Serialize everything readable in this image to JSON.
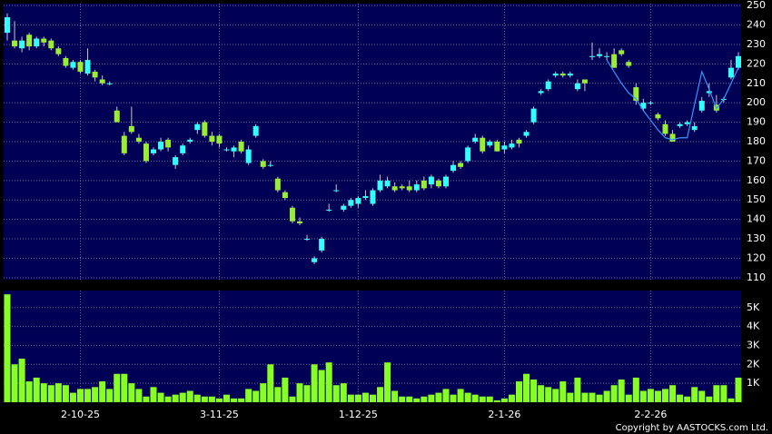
{
  "chart_data": {
    "type": "candlestick",
    "categories": [
      null,
      null,
      null,
      null,
      null,
      null,
      null,
      null,
      null,
      null,
      "2-10-25",
      null,
      null,
      null,
      null,
      null,
      null,
      null,
      null,
      null,
      null,
      null,
      null,
      null,
      null,
      null,
      null,
      null,
      null,
      "3-11-25",
      null,
      null,
      null,
      null,
      null,
      null,
      null,
      null,
      null,
      null,
      null,
      null,
      null,
      null,
      null,
      null,
      null,
      null,
      "1-12-25",
      null,
      null,
      null,
      null,
      null,
      null,
      null,
      null,
      null,
      null,
      null,
      null,
      null,
      null,
      null,
      null,
      null,
      null,
      null,
      "2-1-26",
      null,
      null,
      null,
      null,
      null,
      null,
      null,
      null,
      null,
      null,
      null,
      null,
      null,
      null,
      null,
      null,
      null,
      null,
      null,
      "2-2-26",
      null,
      null,
      null,
      null,
      null,
      null,
      null,
      null,
      null,
      null,
      null,
      null
    ],
    "open": [
      236,
      232,
      228,
      235,
      229,
      233,
      232,
      228,
      223,
      218,
      221,
      215,
      216,
      212,
      210,
      196,
      183,
      188,
      182,
      179,
      174,
      176,
      181,
      168,
      174,
      180,
      186,
      190,
      183,
      183,
      176,
      175,
      180,
      169,
      183,
      170,
      168,
      161,
      154,
      146,
      139,
      130,
      118,
      124,
      145,
      155,
      145,
      147,
      148,
      151,
      148,
      155,
      157,
      157,
      157,
      157,
      155,
      160,
      158,
      160,
      157,
      165,
      169,
      170,
      180,
      182,
      178,
      180,
      176,
      177,
      181,
      183,
      190,
      205,
      207,
      214,
      215,
      214,
      207,
      212,
      224,
      224,
      224,
      225,
      227,
      221,
      208,
      197,
      200,
      194,
      189,
      184,
      188,
      189,
      186,
      196,
      205,
      199,
      202,
      213,
      218
    ],
    "high": [
      246,
      242,
      234,
      236,
      234,
      234,
      233,
      229,
      224,
      222,
      222,
      228,
      217,
      214,
      211,
      198,
      185,
      198,
      184,
      180,
      177,
      182,
      182,
      173,
      179,
      182,
      190,
      191,
      185,
      184,
      177,
      178,
      181,
      178,
      189,
      171,
      170,
      162,
      155,
      147,
      141,
      132,
      121,
      131,
      148,
      158,
      148,
      151,
      152,
      155,
      156,
      163,
      162,
      159,
      158,
      160,
      160,
      162,
      163,
      161,
      163,
      170,
      170,
      178,
      184,
      183,
      181,
      181,
      180,
      181,
      182,
      186,
      198,
      207,
      212,
      216,
      216,
      216,
      212,
      212,
      231,
      228,
      226,
      228,
      228,
      222,
      210,
      202,
      201,
      195,
      191,
      186,
      190,
      191,
      190,
      203,
      210,
      204,
      203,
      222,
      226
    ],
    "low": [
      232,
      228,
      226,
      227,
      228,
      229,
      227,
      224,
      218,
      217,
      215,
      214,
      211,
      209,
      209,
      190,
      173,
      184,
      179,
      169,
      173,
      175,
      175,
      166,
      173,
      179,
      184,
      182,
      178,
      177,
      175,
      172,
      174,
      168,
      182,
      166,
      167,
      154,
      150,
      138,
      137,
      129,
      117,
      123,
      144,
      154,
      144,
      146,
      146,
      150,
      147,
      154,
      156,
      154,
      155,
      154,
      154,
      155,
      156,
      156,
      156,
      164,
      166,
      169,
      179,
      174,
      177,
      175,
      174,
      176,
      177,
      182,
      189,
      204,
      206,
      213,
      213,
      213,
      206,
      206,
      222,
      223,
      222,
      218,
      224,
      218,
      199,
      196,
      199,
      191,
      183,
      180,
      187,
      188,
      185,
      195,
      203,
      195,
      200,
      212,
      217
    ],
    "close": [
      244,
      229,
      232,
      229,
      233,
      231,
      228,
      225,
      219,
      221,
      216,
      222,
      213,
      210,
      210,
      190,
      174,
      185,
      180,
      170,
      176,
      180,
      177,
      172,
      178,
      181,
      189,
      183,
      180,
      179,
      176,
      177,
      175,
      176,
      188,
      167,
      168,
      155,
      151,
      139,
      138,
      130,
      120,
      130,
      145,
      155,
      147,
      150,
      151,
      152,
      155,
      160,
      160,
      155,
      156,
      155,
      158,
      156,
      162,
      157,
      162,
      168,
      167,
      177,
      182,
      175,
      180,
      175,
      178,
      179,
      179,
      185,
      197,
      206,
      211,
      215,
      214,
      215,
      210,
      210,
      224,
      225,
      224,
      218,
      225,
      219,
      201,
      200,
      200,
      192,
      184,
      180,
      189,
      190,
      188,
      201,
      206,
      196,
      202,
      218,
      224
    ],
    "up_color": "#33ffff",
    "down_color": "#99ee33",
    "wick_color": "#c8c8c8",
    "line": {
      "color": "#3399ff",
      "values": [
        null,
        null,
        null,
        null,
        null,
        null,
        null,
        null,
        null,
        null,
        null,
        null,
        null,
        null,
        null,
        null,
        null,
        null,
        null,
        null,
        null,
        null,
        null,
        null,
        null,
        null,
        null,
        null,
        null,
        null,
        null,
        null,
        null,
        null,
        null,
        null,
        null,
        null,
        null,
        null,
        null,
        null,
        null,
        null,
        null,
        null,
        null,
        null,
        null,
        null,
        null,
        null,
        null,
        null,
        null,
        null,
        null,
        null,
        null,
        null,
        null,
        null,
        null,
        null,
        null,
        null,
        null,
        null,
        null,
        null,
        null,
        null,
        null,
        null,
        null,
        null,
        null,
        null,
        null,
        null,
        null,
        null,
        222,
        216,
        210,
        205,
        202,
        196,
        191,
        186,
        182,
        181,
        182,
        182,
        199,
        216,
        207,
        197,
        202,
        210,
        218
      ]
    },
    "ylim": [
      109,
      251
    ],
    "yticks": [
      110,
      120,
      130,
      140,
      150,
      160,
      170,
      180,
      190,
      200,
      210,
      220,
      230,
      240,
      250
    ],
    "volume": {
      "color": "#88ff22",
      "values": [
        5700,
        2000,
        2300,
        1100,
        1300,
        1000,
        900,
        1000,
        900,
        500,
        700,
        700,
        800,
        1100,
        700,
        1500,
        1500,
        1000,
        700,
        300,
        800,
        500,
        300,
        400,
        500,
        600,
        400,
        300,
        300,
        200,
        400,
        200,
        200,
        700,
        600,
        1000,
        2000,
        800,
        1300,
        300,
        1000,
        900,
        2000,
        1700,
        2100,
        900,
        1000,
        400,
        400,
        500,
        400,
        800,
        2100,
        600,
        300,
        300,
        200,
        300,
        400,
        500,
        700,
        400,
        700,
        500,
        400,
        300,
        300,
        100,
        200,
        400,
        1100,
        1500,
        1200,
        900,
        800,
        700,
        1100,
        500,
        1300,
        500,
        500,
        400,
        600,
        900,
        1200,
        400,
        1300,
        600,
        700,
        600,
        700,
        900,
        400,
        300,
        800,
        600,
        300,
        900,
        900,
        200,
        1300
      ],
      "ylim": [
        0,
        5900
      ],
      "yticks": [
        {
          "value": 1000,
          "label": "1K"
        },
        {
          "value": 2000,
          "label": "2K"
        },
        {
          "value": 3000,
          "label": "3K"
        },
        {
          "value": 4000,
          "label": "4K"
        },
        {
          "value": 5000,
          "label": "5K"
        }
      ]
    },
    "grid": true,
    "copyright": "Copyright by AASTOCKS.com Ltd."
  }
}
